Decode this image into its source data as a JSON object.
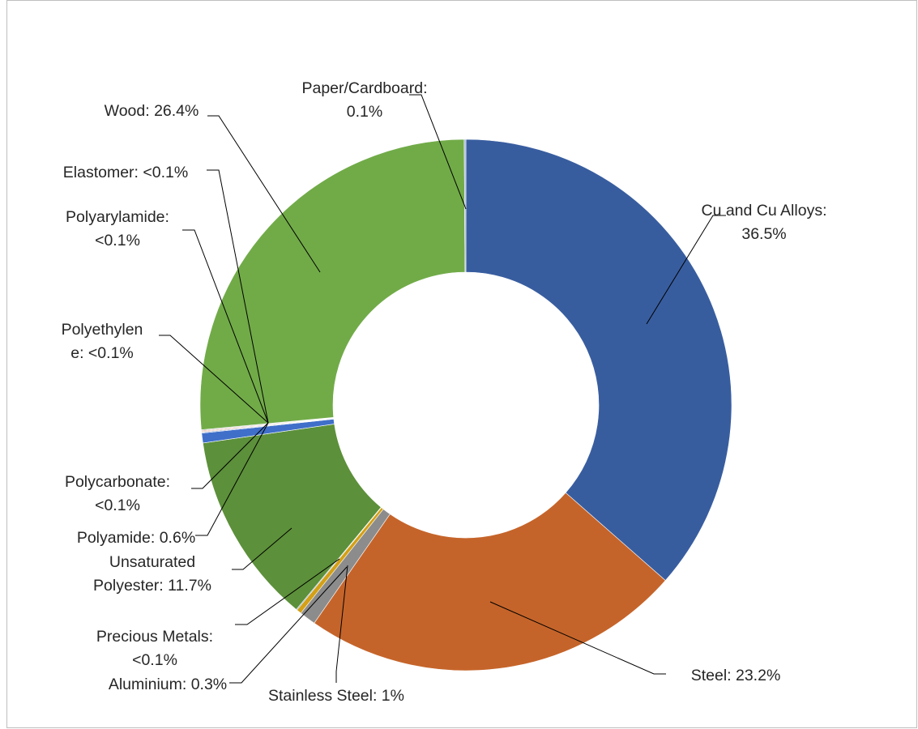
{
  "chart_data": {
    "type": "pie",
    "variant": "donut",
    "start_angle_deg": 0,
    "direction": "clockwise",
    "slices": [
      {
        "label": "Cu and Cu Alloys",
        "value": 36.5,
        "display": "Cu and Cu Alloys: 36.5%",
        "color": "#385D9F"
      },
      {
        "label": "Steel",
        "value": 23.2,
        "display": "Steel: 23.2%",
        "color": "#C5642A"
      },
      {
        "label": "Stainless Steel",
        "value": 1.0,
        "display": "Stainless Steel: 1%",
        "color": "#8C8C8C"
      },
      {
        "label": "Aluminium",
        "value": 0.3,
        "display": "Aluminium: 0.3%",
        "color": "#D4A017"
      },
      {
        "label": "Precious Metals",
        "value": 0.05,
        "display": "Precious Metals: <0.1%",
        "color": "#4A78C2"
      },
      {
        "label": "Unsaturated Polyester",
        "value": 11.7,
        "display": "Unsaturated Polyester: 11.7%",
        "color": "#5C903A"
      },
      {
        "label": "Polyamide",
        "value": 0.6,
        "display": "Polyamide: 0.6%",
        "color": "#3F6FC9"
      },
      {
        "label": "Polycarbonate",
        "value": 0.05,
        "display": "Polycarbonate: <0.1%",
        "color": "#6B8FC9"
      },
      {
        "label": "Polyethylene",
        "value": 0.05,
        "display": "Polyethylene: <0.1%",
        "color": "#E0B3A3"
      },
      {
        "label": "Polyarylamide",
        "value": 0.05,
        "display": "Polyarylamide: <0.1%",
        "color": "#D89068"
      },
      {
        "label": "Elastomer",
        "value": 0.05,
        "display": "Elastomer: <0.1%",
        "color": "#A7A7A7"
      },
      {
        "label": "Wood",
        "value": 26.4,
        "display": "Wood: 26.4%",
        "color": "#71AB48"
      },
      {
        "label": "Paper/Cardboard",
        "value": 0.1,
        "display": "Paper/Cardboard: 0.1%",
        "color": "#9DB1D8"
      }
    ],
    "labels": [
      {
        "key": "paper",
        "lines": [
          "Paper/Cardboard:",
          "0.1%"
        ]
      },
      {
        "key": "cu",
        "lines": [
          "Cu and Cu Alloys:",
          "36.5%"
        ]
      },
      {
        "key": "wood",
        "lines": [
          "Wood: 26.4%"
        ]
      },
      {
        "key": "elastomer",
        "lines": [
          "Elastomer: <0.1%"
        ]
      },
      {
        "key": "polyarylamide",
        "lines": [
          "Polyarylamide:",
          "<0.1%"
        ]
      },
      {
        "key": "polyethylene",
        "lines": [
          "Polyethylen",
          "e: <0.1%"
        ]
      },
      {
        "key": "polycarbonate",
        "lines": [
          "Polycarbonate:",
          "<0.1%"
        ]
      },
      {
        "key": "polyamide",
        "lines": [
          "Polyamide: 0.6%"
        ]
      },
      {
        "key": "unsat",
        "lines": [
          "Unsaturated",
          "Polyester: 11.7%"
        ]
      },
      {
        "key": "precious",
        "lines": [
          "Precious Metals:",
          "<0.1%"
        ]
      },
      {
        "key": "aluminium",
        "lines": [
          "Aluminium: 0.3%"
        ]
      },
      {
        "key": "stainless",
        "lines": [
          "Stainless Steel: 1%"
        ]
      },
      {
        "key": "steel",
        "lines": [
          "Steel: 23.2%"
        ]
      }
    ]
  }
}
